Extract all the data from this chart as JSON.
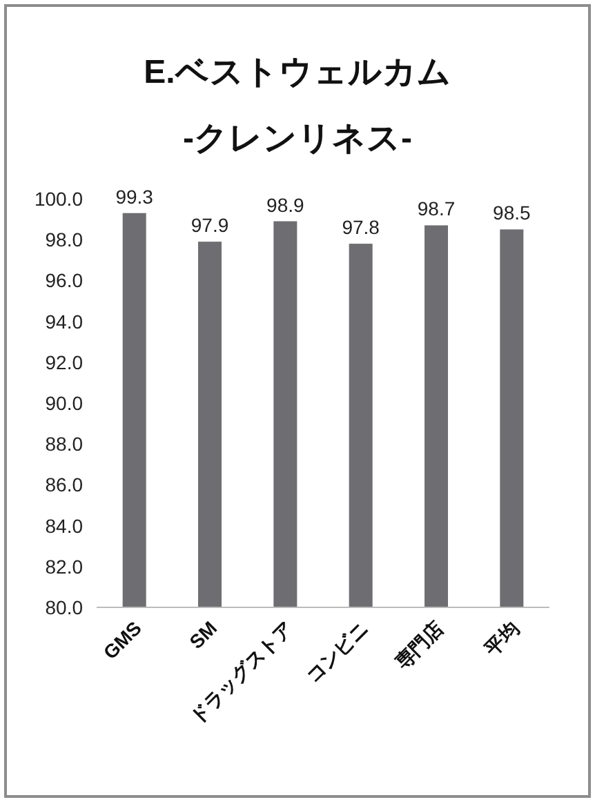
{
  "chart_data": {
    "type": "bar",
    "title": "E.ベストウェルカム",
    "subtitle": "-クレンリネス-",
    "categories": [
      "GMS",
      "SM",
      "ドラッグストア",
      "コンビニ",
      "専門店",
      "平均"
    ],
    "values": [
      99.3,
      97.9,
      98.9,
      97.8,
      98.7,
      98.5
    ],
    "color": "#6e6e72",
    "ylim": [
      80,
      100
    ],
    "yticks": [
      {
        "value": 80,
        "label": "80.0"
      },
      {
        "value": 82,
        "label": "82.0"
      },
      {
        "value": 84,
        "label": "84.0"
      },
      {
        "value": 86,
        "label": "86.0"
      },
      {
        "value": 88,
        "label": "88.0"
      },
      {
        "value": 90,
        "label": "90.0"
      },
      {
        "value": 92,
        "label": "92.0"
      },
      {
        "value": 94,
        "label": "94.0"
      },
      {
        "value": 96,
        "label": "96.0"
      },
      {
        "value": 98,
        "label": "98.0"
      },
      {
        "value": 100,
        "label": "100.0"
      }
    ],
    "data_labels": true
  }
}
